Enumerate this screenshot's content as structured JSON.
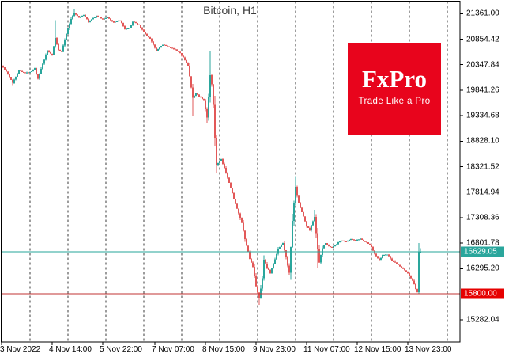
{
  "title": "Bitcoin, H1",
  "logo": {
    "brand": "FxPro",
    "tagline": "Trade Like a Pro",
    "bg_color": "#e8041c",
    "text_color": "#ffffff"
  },
  "colors": {
    "background": "#ffffff",
    "frame": "#000000",
    "grid_separator": "#3a3a3a",
    "bull": "#2aa69c",
    "bear": "#e25858",
    "bid_line": "#26a69a",
    "level_line": "#c03333",
    "bid_badge_bg": "#2aa69c",
    "level_badge_bg": "#e60000",
    "axis_text": "#000000",
    "title_text": "#3c3c3c"
  },
  "price_axis": {
    "ticks": [
      {
        "value": 21361.0,
        "label": "21361.00"
      },
      {
        "value": 20854.42,
        "label": "20854.42"
      },
      {
        "value": 20347.84,
        "label": "20347.84"
      },
      {
        "value": 19841.26,
        "label": "19841.26"
      },
      {
        "value": 19334.68,
        "label": "19334.68"
      },
      {
        "value": 18828.1,
        "label": "18828.10"
      },
      {
        "value": 18321.52,
        "label": "18321.52"
      },
      {
        "value": 17814.94,
        "label": "17814.94"
      },
      {
        "value": 17308.36,
        "label": "17308.36"
      },
      {
        "value": 16801.78,
        "label": "16801.78"
      },
      {
        "value": 16295.2,
        "label": "16295.20"
      },
      {
        "value": 15282.04,
        "label": "15282.04"
      }
    ]
  },
  "time_axis": {
    "origin": "3 Nov 2022 00:00",
    "ticks": [
      {
        "t": 6,
        "label": "3 Nov 2022"
      },
      {
        "t": 38,
        "label": "4 Nov 14:00"
      },
      {
        "t": 70,
        "label": "5 Nov 22:00"
      },
      {
        "t": 103,
        "label": "7 Nov 07:00"
      },
      {
        "t": 135,
        "label": "8 Nov 15:00"
      },
      {
        "t": 167,
        "label": "9 Nov 23:00"
      },
      {
        "t": 199,
        "label": "11 Nov 07:00"
      },
      {
        "t": 231,
        "label": "12 Nov 15:00"
      },
      {
        "t": 263,
        "label": "13 Nov 23:00"
      }
    ]
  },
  "price_lines": [
    {
      "name": "bid-price-line",
      "value": 16629.05,
      "label": "16629.05"
    },
    {
      "name": "level-price-line",
      "value": 15800.0,
      "label": "15800.00"
    }
  ],
  "chart_data": {
    "type": "candlestick",
    "symbol": "Bitcoin",
    "timeframe": "H1",
    "current_price": 16629.05,
    "marked_level": 15800.0,
    "hours_span": [
      6,
      271
    ],
    "day_separator_every_hours": 24,
    "anchors_hour_close": [
      [
        6,
        20330
      ],
      [
        9,
        20210
      ],
      [
        13,
        19990
      ],
      [
        17,
        20240
      ],
      [
        21,
        20180
      ],
      [
        25,
        20220
      ],
      [
        27,
        20280
      ],
      [
        29,
        20060
      ],
      [
        32,
        20360
      ],
      [
        35,
        20630
      ],
      [
        38,
        20540
      ],
      [
        40,
        20880
      ],
      [
        42,
        20640
      ],
      [
        44,
        20610
      ],
      [
        47,
        20960
      ],
      [
        50,
        21260
      ],
      [
        52,
        21380
      ],
      [
        55,
        21280
      ],
      [
        58,
        21340
      ],
      [
        61,
        21200
      ],
      [
        64,
        21270
      ],
      [
        66,
        21320
      ],
      [
        70,
        21250
      ],
      [
        73,
        21290
      ],
      [
        77,
        21180
      ],
      [
        81,
        21230
      ],
      [
        84,
        21050
      ],
      [
        87,
        21070
      ],
      [
        89,
        21200
      ],
      [
        93,
        21140
      ],
      [
        96,
        20990
      ],
      [
        100,
        20860
      ],
      [
        104,
        20630
      ],
      [
        108,
        20750
      ],
      [
        112,
        20690
      ],
      [
        116,
        20650
      ],
      [
        119,
        20570
      ],
      [
        121,
        20490
      ],
      [
        124,
        20330
      ],
      [
        125,
        20120
      ],
      [
        127,
        19680
      ],
      [
        129,
        19780
      ],
      [
        132,
        19690
      ],
      [
        134,
        19640
      ],
      [
        136,
        19290
      ],
      [
        138,
        20150
      ],
      [
        139,
        19950
      ],
      [
        140,
        19560
      ],
      [
        141,
        18900
      ],
      [
        142,
        18350
      ],
      [
        145,
        18460
      ],
      [
        148,
        18210
      ],
      [
        150,
        18010
      ],
      [
        153,
        17680
      ],
      [
        155,
        17480
      ],
      [
        158,
        17200
      ],
      [
        160,
        16880
      ],
      [
        163,
        16500
      ],
      [
        165,
        16330
      ],
      [
        167,
        15950
      ],
      [
        169,
        15700
      ],
      [
        171,
        16100
      ],
      [
        172,
        16480
      ],
      [
        174,
        16320
      ],
      [
        176,
        16210
      ],
      [
        179,
        16480
      ],
      [
        181,
        16690
      ],
      [
        184,
        16810
      ],
      [
        186,
        16520
      ],
      [
        188,
        16210
      ],
      [
        190,
        17250
      ],
      [
        192,
        17930
      ],
      [
        194,
        17590
      ],
      [
        196,
        17420
      ],
      [
        199,
        17140
      ],
      [
        201,
        17060
      ],
      [
        204,
        17330
      ],
      [
        206,
        16680
      ],
      [
        207,
        16420
      ],
      [
        209,
        16700
      ],
      [
        211,
        16810
      ],
      [
        213,
        16740
      ],
      [
        215,
        16710
      ],
      [
        218,
        16790
      ],
      [
        221,
        16860
      ],
      [
        224,
        16830
      ],
      [
        227,
        16880
      ],
      [
        230,
        16850
      ],
      [
        233,
        16890
      ],
      [
        236,
        16830
      ],
      [
        239,
        16780
      ],
      [
        242,
        16590
      ],
      [
        245,
        16460
      ],
      [
        247,
        16560
      ],
      [
        250,
        16580
      ],
      [
        253,
        16450
      ],
      [
        255,
        16410
      ],
      [
        258,
        16340
      ],
      [
        260,
        16290
      ],
      [
        262,
        16240
      ],
      [
        264,
        16160
      ],
      [
        266,
        16060
      ],
      [
        268,
        15900
      ],
      [
        269,
        15830
      ],
      [
        270,
        16620
      ],
      [
        271,
        16629.05
      ]
    ],
    "wick_overrides": {
      "13": {
        "low": 19940
      },
      "40": {
        "high": 21230
      },
      "52": {
        "high": 21445
      },
      "127": {
        "low": 19320
      },
      "136": {
        "low": 19195
      },
      "138": {
        "high": 20610
      },
      "141": {
        "low": 18720
      },
      "169": {
        "low": 15580
      },
      "192": {
        "high": 18130
      },
      "204": {
        "high": 17465
      },
      "206": {
        "low": 16310
      },
      "270": {
        "low": 15795
      },
      "271": {
        "high": 16700
      }
    }
  }
}
